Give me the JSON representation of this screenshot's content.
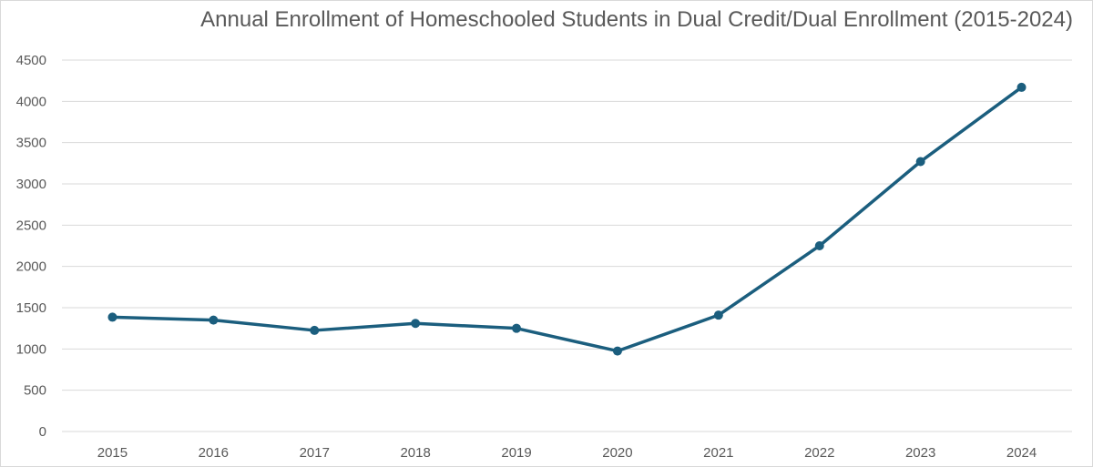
{
  "chart_data": {
    "type": "line",
    "title": "Annual Enrollment of Homeschooled Students in Dual Credit/Dual Enrollment (2015-2024)",
    "xlabel": "",
    "ylabel": "",
    "categories": [
      "2015",
      "2016",
      "2017",
      "2018",
      "2019",
      "2020",
      "2021",
      "2022",
      "2023",
      "2024"
    ],
    "series": [
      {
        "values": [
          1385,
          1350,
          1225,
          1310,
          1250,
          975,
          1410,
          2250,
          3270,
          4170
        ]
      }
    ],
    "ylim": [
      0,
      4500
    ],
    "yticks": [
      "0",
      "500",
      "1000",
      "1500",
      "2000",
      "2500",
      "3000",
      "3500",
      "4000",
      "4500"
    ],
    "grid": true,
    "legend": "none",
    "colors": {
      "line": "#1b5e7e",
      "grid": "#d9d9d9",
      "text": "#595959"
    }
  }
}
